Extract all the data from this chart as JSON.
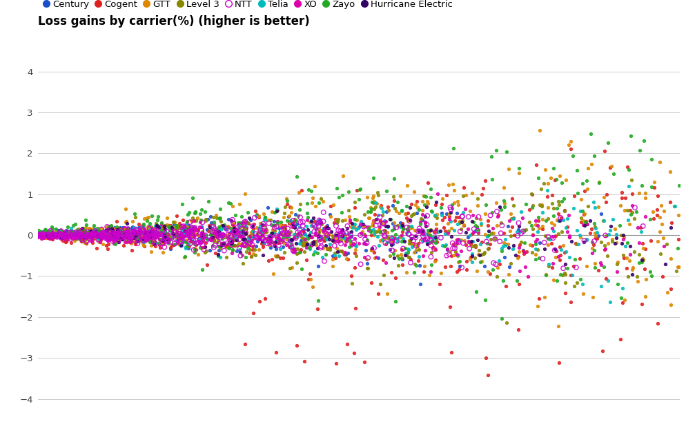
{
  "title": "Loss gains by carrier(%) (higher is better)",
  "carriers": [
    "Century",
    "Cogent",
    "GTT",
    "Level 3",
    "NTT",
    "Telia",
    "XO",
    "Zayo",
    "Hurricane Electric"
  ],
  "colors": {
    "Century": "#1a4fcc",
    "Cogent": "#e02020",
    "GTT": "#dd8800",
    "Level 3": "#888800",
    "NTT": "#cc00cc",
    "Telia": "#00bbbb",
    "XO": "#dd00aa",
    "Zayo": "#22aa22",
    "Hurricane Electric": "#330066"
  },
  "ylim": [
    -4.2,
    4.4
  ],
  "yticks": [
    -4,
    -3,
    -2,
    -1,
    0,
    1,
    2,
    3,
    4
  ],
  "n_points": {
    "Century": 220,
    "Cogent": 420,
    "GTT": 450,
    "Level 3": 380,
    "NTT": 500,
    "Telia": 280,
    "XO": 220,
    "Zayo": 320,
    "Hurricane Electric": 200
  },
  "x_range": [
    0,
    720
  ],
  "background_color": "#ffffff",
  "grid_color": "#cccccc",
  "title_fontsize": 12,
  "legend_fontsize": 9.5
}
